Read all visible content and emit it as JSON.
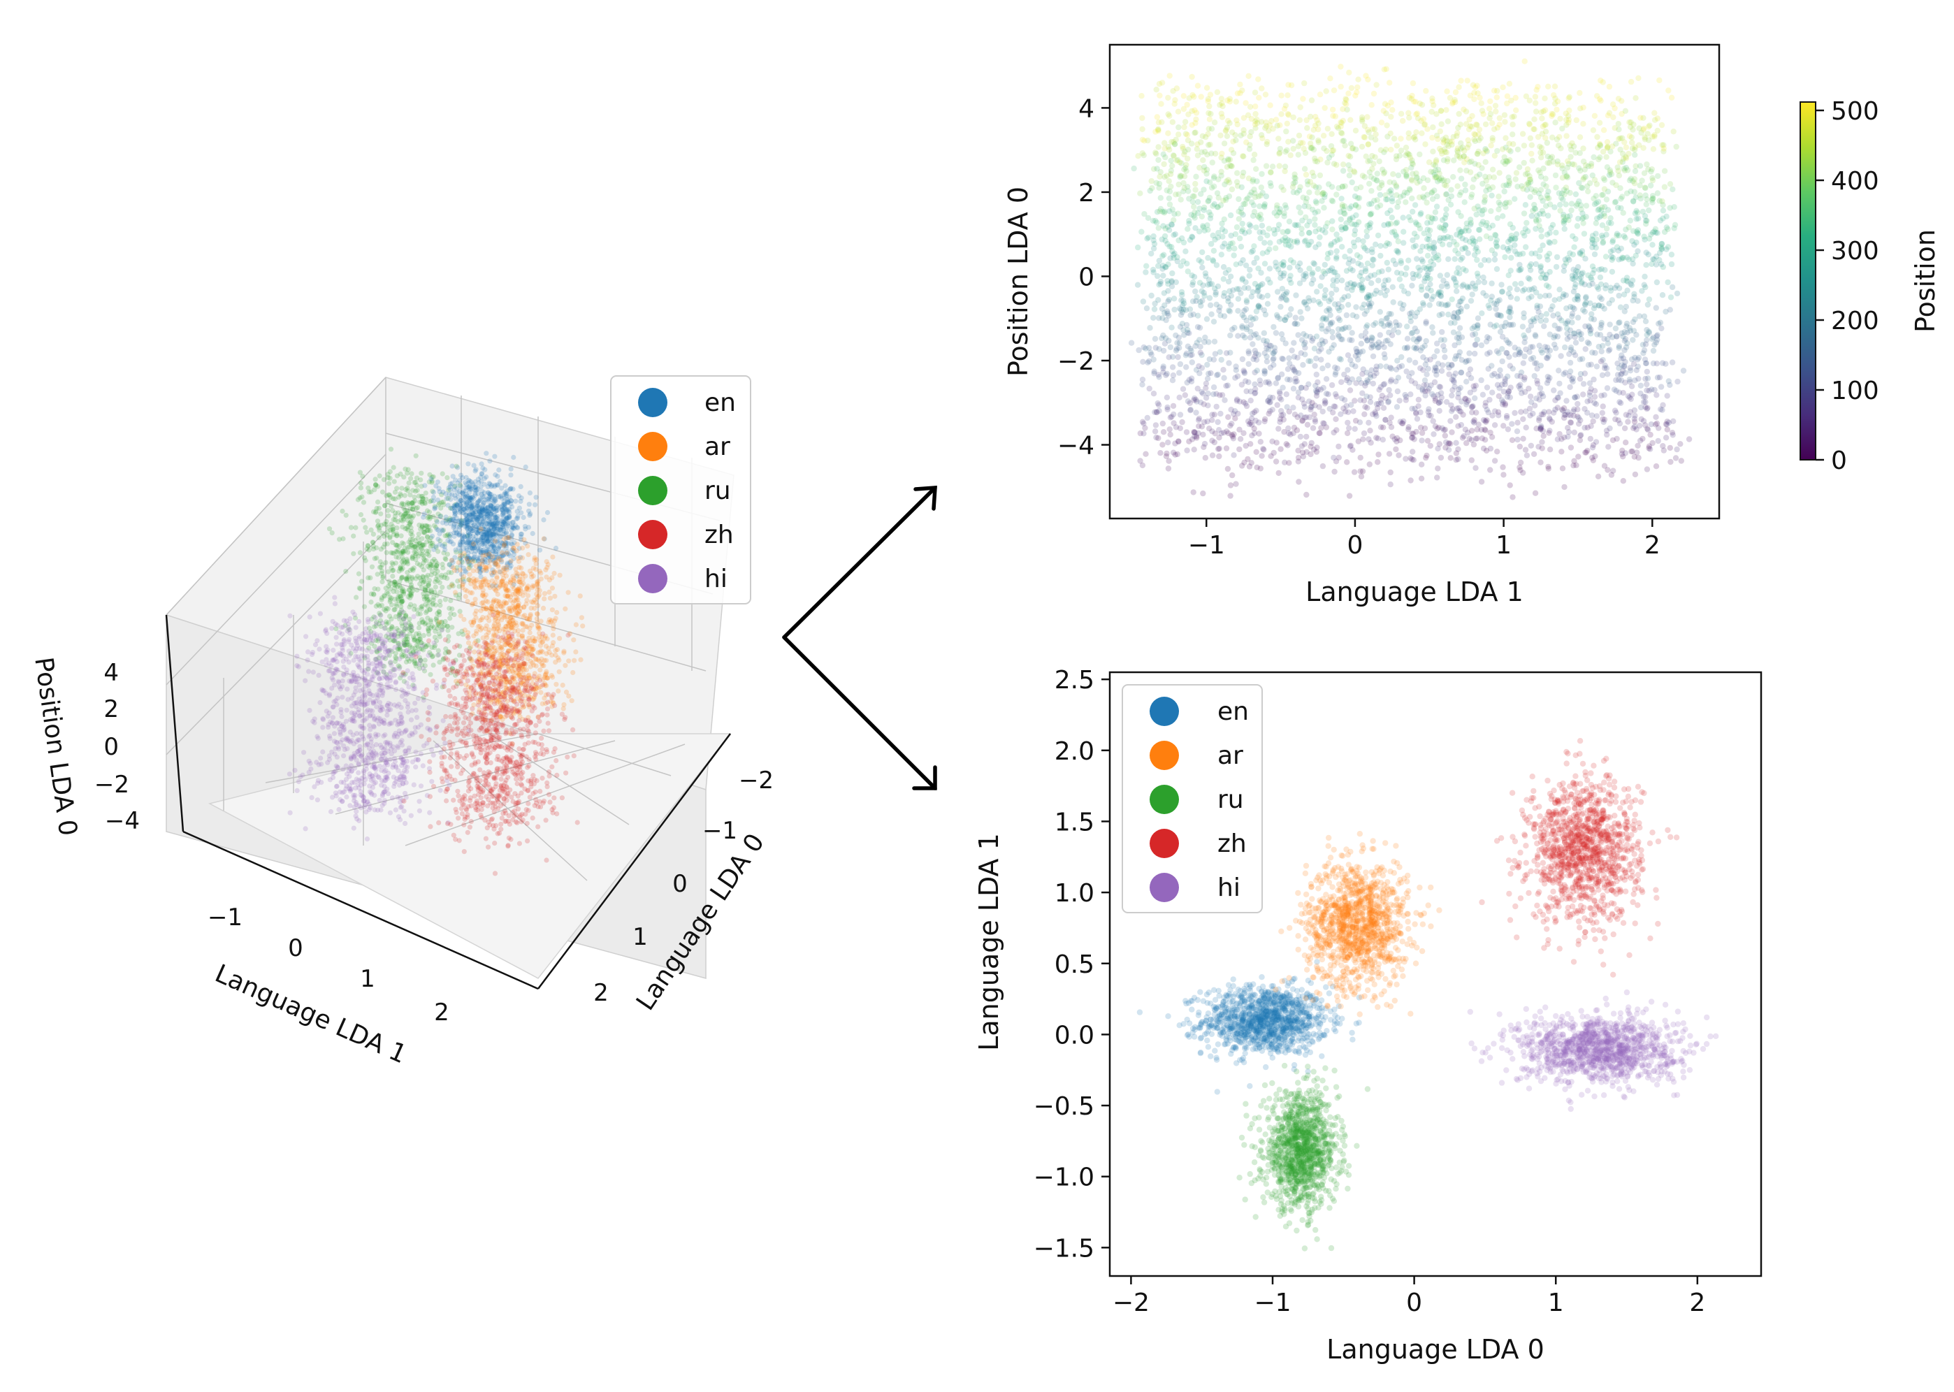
{
  "language_colors": {
    "en": "#1f77b4",
    "ar": "#ff7f0e",
    "ru": "#2ca02c",
    "zh": "#d62728",
    "hi": "#9467bd"
  },
  "arrow_color": "#000000",
  "chart_data": [
    {
      "id": "scatter3d",
      "type": "scatter",
      "projection": "3d",
      "xlabel": "Language LDA 1",
      "ylabel": "Language LDA 0",
      "zlabel": "Position LDA 0",
      "x_ticks": [
        "−1",
        "0",
        "1",
        "2"
      ],
      "y_ticks": [
        "−2",
        "−1",
        "0",
        "1",
        "2"
      ],
      "z_ticks": [
        "4",
        "2",
        "0",
        "−2",
        "−4"
      ],
      "legend": [
        "en",
        "ar",
        "ru",
        "zh",
        "hi"
      ],
      "legend_position": "top-right",
      "series": [
        {
          "name": "en",
          "lda0_center": -1.05,
          "lda1_center": 0.1,
          "position_range": [
            -4.5,
            4.5
          ]
        },
        {
          "name": "ar",
          "lda0_center": -0.4,
          "lda1_center": 0.8,
          "position_range": [
            -4.5,
            4.5
          ]
        },
        {
          "name": "ru",
          "lda0_center": -0.8,
          "lda1_center": -0.8,
          "position_range": [
            -4.5,
            4.5
          ]
        },
        {
          "name": "zh",
          "lda0_center": 1.2,
          "lda1_center": 1.3,
          "position_range": [
            -4.5,
            4.5
          ]
        },
        {
          "name": "hi",
          "lda0_center": 1.3,
          "lda1_center": -0.1,
          "position_range": [
            -4.5,
            4.5
          ]
        }
      ]
    },
    {
      "id": "position_scatter",
      "type": "scatter",
      "xlabel": "Language LDA 1",
      "ylabel": "Position LDA 0",
      "xlim": [
        -1.65,
        2.45
      ],
      "ylim": [
        -5.75,
        5.5
      ],
      "x_ticks": [
        -1,
        0,
        1,
        2
      ],
      "y_ticks": [
        -4,
        -2,
        0,
        2,
        4
      ],
      "x_tick_labels": [
        "−1",
        "0",
        "1",
        "2"
      ],
      "y_tick_labels": [
        "−4",
        "−2",
        "0",
        "2",
        "4"
      ],
      "color_by": "Position",
      "colormap": "viridis",
      "colorbar": {
        "label": "Position",
        "min": 0,
        "max": 512,
        "ticks": [
          0,
          100,
          200,
          300,
          400,
          500
        ]
      },
      "point_groups": [
        {
          "position_range": [
            0,
            100
          ],
          "position_lda0_center": -4.2
        },
        {
          "position_range": [
            100,
            200
          ],
          "position_lda0_center": -2.0
        },
        {
          "position_range": [
            200,
            300
          ],
          "position_lda0_center": 0.0
        },
        {
          "position_range": [
            300,
            400
          ],
          "position_lda0_center": 2.0
        },
        {
          "position_range": [
            400,
            512
          ],
          "position_lda0_center": 4.2
        }
      ],
      "language_lda1_range": [
        -1.4,
        2.1
      ]
    },
    {
      "id": "language_scatter",
      "type": "scatter",
      "xlabel": "Language LDA 0",
      "ylabel": "Language LDA 1",
      "xlim": [
        -2.15,
        2.45
      ],
      "ylim": [
        -1.7,
        2.55
      ],
      "x_ticks": [
        -2,
        -1,
        0,
        1,
        2
      ],
      "y_ticks": [
        -1.5,
        -1.0,
        -0.5,
        0.0,
        0.5,
        1.0,
        1.5,
        2.0,
        2.5
      ],
      "x_tick_labels": [
        "−2",
        "−1",
        "0",
        "1",
        "2"
      ],
      "y_tick_labels": [
        "−1.5",
        "−1.0",
        "−0.5",
        "0.0",
        "0.5",
        "1.0",
        "1.5",
        "2.0",
        "2.5"
      ],
      "legend": [
        "en",
        "ar",
        "ru",
        "zh",
        "hi"
      ],
      "legend_position": "top-left",
      "series": [
        {
          "name": "en",
          "center": [
            -1.05,
            0.1
          ],
          "spread": [
            0.22,
            0.12
          ]
        },
        {
          "name": "ar",
          "center": [
            -0.4,
            0.78
          ],
          "spread": [
            0.18,
            0.22
          ]
        },
        {
          "name": "ru",
          "center": [
            -0.8,
            -0.82
          ],
          "spread": [
            0.13,
            0.2
          ]
        },
        {
          "name": "zh",
          "center": [
            1.2,
            1.3
          ],
          "spread": [
            0.2,
            0.25
          ]
        },
        {
          "name": "hi",
          "center": [
            1.3,
            -0.1
          ],
          "spread": [
            0.28,
            0.12
          ]
        }
      ]
    }
  ]
}
